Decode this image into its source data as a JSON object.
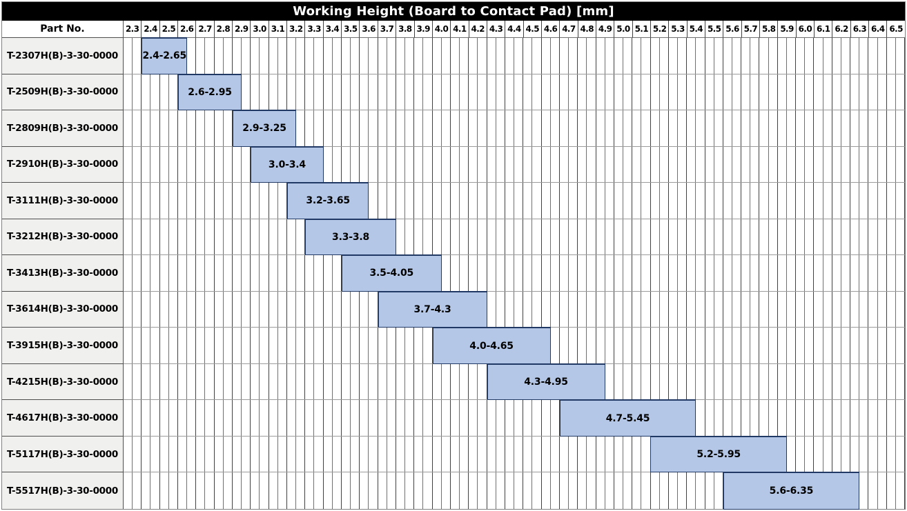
{
  "header": {
    "part_no_label": "Part No."
  },
  "colors": {
    "title_bg": "#000000",
    "title_text": "#ffffff",
    "part_cell_bg": "#f0f0ef",
    "bar_fill": "#b4c7e7",
    "bar_border": "#1f3864",
    "grid_major_line": "#3f3f3f",
    "grid_minor_line": "#6f6f6f"
  },
  "chart_data": {
    "type": "bar",
    "orientation": "horizontal-range-gantt",
    "title": "Working Height (Board to Contact Pad) [mm]",
    "x_axis": {
      "min": 2.3,
      "max": 6.6,
      "tick_step": 0.1,
      "minor_step": 0.05,
      "tick_labels": [
        "2.3",
        "2.4",
        "2.5",
        "2.6",
        "2.7",
        "2.8",
        "2.9",
        "3.0",
        "3.1",
        "3.2",
        "3.3",
        "3.4",
        "3.5",
        "3.6",
        "3.7",
        "3.8",
        "3.9",
        "4.0",
        "4.1",
        "4.2",
        "4.3",
        "4.4",
        "4.5",
        "4.6",
        "4.7",
        "4.8",
        "4.9",
        "5.0",
        "5.1",
        "5.2",
        "5.3",
        "5.4",
        "5.5",
        "5.6",
        "5.7",
        "5.8",
        "5.9",
        "6.0",
        "6.1",
        "6.2",
        "6.3",
        "6.4",
        "6.5"
      ]
    },
    "grid": true,
    "legend": false,
    "rows": [
      {
        "part_no": "T-2307H(B)-3-30-0000",
        "start": 2.4,
        "end": 2.65,
        "label": "2.4-2.65"
      },
      {
        "part_no": "T-2509H(B)-3-30-0000",
        "start": 2.6,
        "end": 2.95,
        "label": "2.6-2.95"
      },
      {
        "part_no": "T-2809H(B)-3-30-0000",
        "start": 2.9,
        "end": 3.25,
        "label": "2.9-3.25"
      },
      {
        "part_no": "T-2910H(B)-3-30-0000",
        "start": 3.0,
        "end": 3.4,
        "label": "3.0-3.4"
      },
      {
        "part_no": "T-3111H(B)-3-30-0000",
        "start": 3.2,
        "end": 3.65,
        "label": "3.2-3.65"
      },
      {
        "part_no": "T-3212H(B)-3-30-0000",
        "start": 3.3,
        "end": 3.8,
        "label": "3.3-3.8"
      },
      {
        "part_no": "T-3413H(B)-3-30-0000",
        "start": 3.5,
        "end": 4.05,
        "label": "3.5-4.05"
      },
      {
        "part_no": "T-3614H(B)-3-30-0000",
        "start": 3.7,
        "end": 4.3,
        "label": "3.7-4.3"
      },
      {
        "part_no": "T-3915H(B)-3-30-0000",
        "start": 4.0,
        "end": 4.65,
        "label": "4.0-4.65"
      },
      {
        "part_no": "T-4215H(B)-3-30-0000",
        "start": 4.3,
        "end": 4.95,
        "label": "4.3-4.95"
      },
      {
        "part_no": "T-4617H(B)-3-30-0000",
        "start": 4.7,
        "end": 5.45,
        "label": "4.7-5.45"
      },
      {
        "part_no": "T-5117H(B)-3-30-0000",
        "start": 5.2,
        "end": 5.95,
        "label": "5.2-5.95"
      },
      {
        "part_no": "T-5517H(B)-3-30-0000",
        "start": 5.6,
        "end": 6.35,
        "label": "5.6-6.35"
      }
    ]
  }
}
